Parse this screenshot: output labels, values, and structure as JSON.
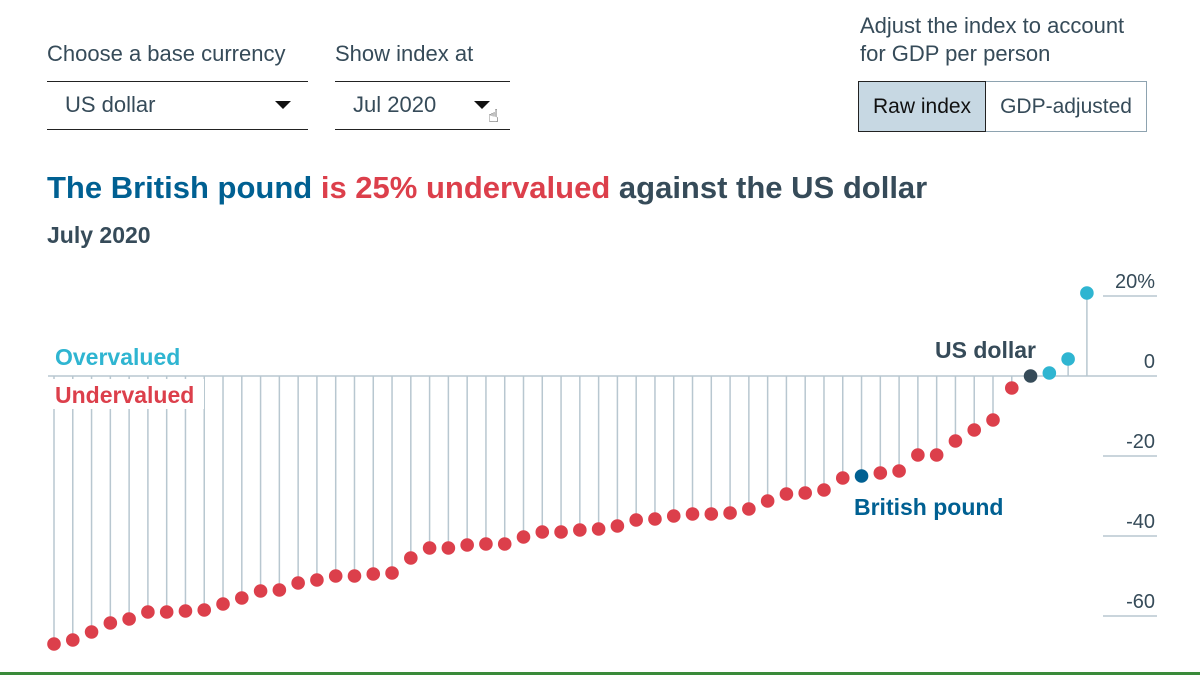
{
  "controls": {
    "base_currency": {
      "label": "Choose a base currency",
      "value": "US dollar"
    },
    "index_date": {
      "label": "Show index at",
      "value": "Jul 2020"
    },
    "adjust": {
      "label_line1": "Adjust the index to account",
      "label_line2": "for GDP per person",
      "options": [
        "Raw index",
        "GDP-adjusted"
      ],
      "selected": "Raw index"
    }
  },
  "headline": {
    "part1": "The British pound",
    "part2": "is 25% undervalued",
    "part3": "against the US dollar"
  },
  "subtitle": "July 2020",
  "colors": {
    "overvalued": "#2fb5d1",
    "undervalued": "#dc3f4b",
    "highlight": "#006092",
    "base": "#364b59",
    "stem": "#b8c7d0"
  },
  "chart_data": {
    "type": "lollipop",
    "ylim": [
      -70,
      22
    ],
    "yticks": [
      20,
      0,
      -20,
      -40,
      -60
    ],
    "ytick_labels": [
      "20%",
      "0",
      "-20",
      "-40",
      "-60"
    ],
    "labels": {
      "overvalued": "Overvalued",
      "undervalued": "Undervalued",
      "base": "US dollar",
      "highlight": "British pound"
    },
    "base_index": 52,
    "highlight_index": 43,
    "values": [
      -67,
      -66,
      -64,
      -61.75,
      -60.75,
      -59,
      -59,
      -58.75,
      -58.5,
      -57,
      -55.5,
      -53.75,
      -53.5,
      -51.75,
      -51,
      -50,
      -50,
      -49.5,
      -49.25,
      -45.5,
      -43,
      -43,
      -42.25,
      -42,
      -42,
      -40.25,
      -39,
      -39,
      -38.5,
      -38.25,
      -37.5,
      -36,
      -35.75,
      -35,
      -34.5,
      -34.5,
      -34.25,
      -33.25,
      -31.25,
      -29.5,
      -29.25,
      -28.5,
      -25.5,
      -25,
      -24.25,
      -23.75,
      -19.75,
      -19.75,
      -16.25,
      -13.5,
      -11,
      -3,
      0,
      0.75,
      4.25,
      20.75
    ]
  }
}
